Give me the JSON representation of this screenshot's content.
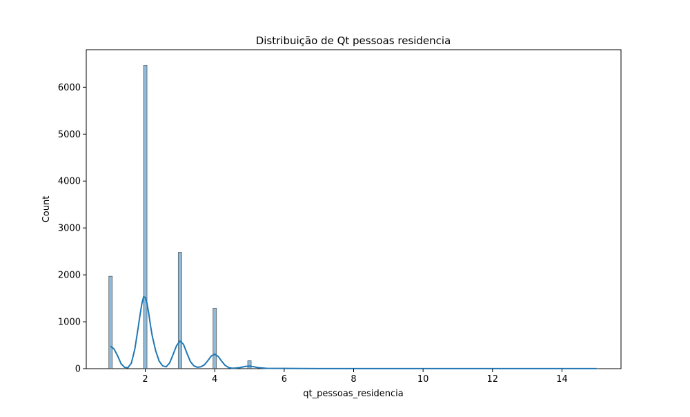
{
  "chart_data": {
    "type": "bar",
    "title": "Distribuição de Qt pessoas residencia",
    "xlabel": "qt_pessoas_residencia",
    "ylabel": "Count",
    "xlim": [
      0.3,
      15.7
    ],
    "ylim": [
      0,
      6800
    ],
    "xticks": [
      2,
      4,
      6,
      8,
      10,
      12,
      14
    ],
    "yticks": [
      0,
      1000,
      2000,
      3000,
      4000,
      5000,
      6000
    ],
    "grid": false,
    "bar_color": "#1f77b4",
    "histogram": {
      "bin_width": 0.1,
      "bins": [
        {
          "x": 1,
          "count": 1970
        },
        {
          "x": 2,
          "count": 6470
        },
        {
          "x": 3,
          "count": 2480
        },
        {
          "x": 4,
          "count": 1290
        },
        {
          "x": 5,
          "count": 170
        },
        {
          "x": 6,
          "count": 10
        },
        {
          "x": 15,
          "count": 2
        }
      ]
    },
    "kde": {
      "name": "kde",
      "x": [
        1.0,
        1.1,
        1.2,
        1.3,
        1.4,
        1.5,
        1.6,
        1.7,
        1.8,
        1.85,
        1.9,
        1.95,
        2.0,
        2.05,
        2.1,
        2.15,
        2.2,
        2.3,
        2.4,
        2.5,
        2.6,
        2.7,
        2.8,
        2.9,
        3.0,
        3.1,
        3.2,
        3.3,
        3.4,
        3.5,
        3.6,
        3.7,
        3.8,
        3.9,
        4.0,
        4.1,
        4.2,
        4.3,
        4.4,
        4.5,
        4.6,
        4.7,
        4.8,
        4.9,
        5.0,
        5.1,
        5.2,
        5.3,
        5.5,
        6.0,
        6.5,
        7,
        8,
        9,
        10,
        11,
        12,
        13,
        14,
        15
      ],
      "y": [
        480,
        420,
        280,
        110,
        30,
        20,
        120,
        420,
        900,
        1150,
        1380,
        1530,
        1520,
        1390,
        1180,
        920,
        700,
        380,
        160,
        60,
        40,
        120,
        300,
        490,
        590,
        520,
        330,
        150,
        60,
        30,
        40,
        80,
        170,
        270,
        310,
        260,
        160,
        70,
        25,
        10,
        12,
        20,
        35,
        50,
        55,
        45,
        30,
        18,
        8,
        5,
        3,
        2,
        1,
        1,
        1,
        1,
        1,
        1,
        1,
        1
      ]
    }
  }
}
